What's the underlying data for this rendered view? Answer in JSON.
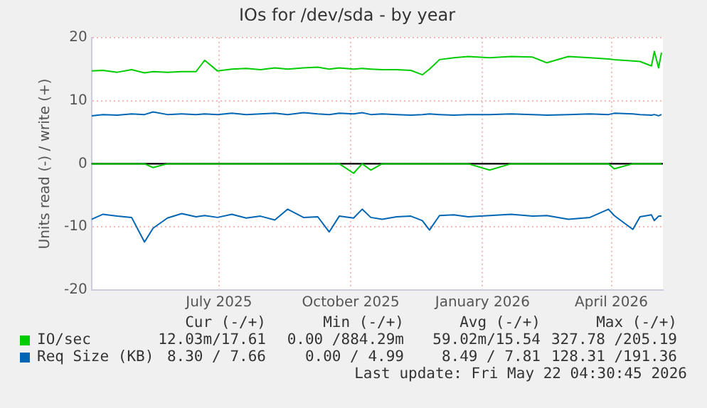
{
  "chart_data": {
    "type": "line",
    "title": "IOs for /dev/sda - by year",
    "ylabel": "Units read (-) / write (+)",
    "x": [
      "2025-04-18",
      "2025-04-26",
      "2025-05-06",
      "2025-05-16",
      "2025-05-25",
      "2025-05-31",
      "2025-06-10",
      "2025-06-20",
      "2025-06-30",
      "2025-07-06",
      "2025-07-15",
      "2025-07-25",
      "2025-08-04",
      "2025-08-14",
      "2025-08-24",
      "2025-09-02",
      "2025-09-13",
      "2025-09-23",
      "2025-10-01",
      "2025-10-08",
      "2025-10-18",
      "2025-10-24",
      "2025-10-30",
      "2025-11-07",
      "2025-11-17",
      "2025-11-27",
      "2025-12-05",
      "2025-12-10",
      "2025-12-17",
      "2025-12-27",
      "2026-01-06",
      "2026-01-21",
      "2026-02-05",
      "2026-02-20",
      "2026-03-02",
      "2026-03-17",
      "2026-04-01",
      "2026-04-14",
      "2026-04-18",
      "2026-05-01",
      "2026-05-06",
      "2026-05-14",
      "2026-05-16",
      "2026-05-19",
      "2026-05-21"
    ],
    "series": [
      {
        "name": "IO/sec",
        "color": "#00cc00",
        "values": [
          14.7,
          14.8,
          14.5,
          14.9,
          14.4,
          14.6,
          14.5,
          14.6,
          14.6,
          16.4,
          14.7,
          15.0,
          15.1,
          14.9,
          15.2,
          15.0,
          15.2,
          15.3,
          15.0,
          15.2,
          15.0,
          15.1,
          15.0,
          14.9,
          14.9,
          14.8,
          14.1,
          15.0,
          16.5,
          16.8,
          17.0,
          16.8,
          17.0,
          16.9,
          16.0,
          17.0,
          16.8,
          16.6,
          16.5,
          16.3,
          16.2,
          15.5,
          17.8,
          15.2,
          17.6
        ]
      },
      {
        "color": "#00cc00",
        "values": [
          0,
          0,
          0,
          0,
          0,
          -0.6,
          0,
          0,
          0,
          0,
          0,
          0,
          0,
          0,
          0,
          0,
          0,
          0,
          0,
          0,
          -1.5,
          0,
          -1.0,
          0,
          0,
          0,
          0,
          0,
          0,
          0,
          0,
          -1.0,
          0,
          0,
          0,
          0,
          0,
          0,
          -0.8,
          0,
          0,
          0,
          0,
          0,
          0
        ]
      },
      {
        "name": "Req Size (KB)",
        "color": "#0066b3",
        "values": [
          7.6,
          7.8,
          7.7,
          7.9,
          7.8,
          8.2,
          7.8,
          7.9,
          7.8,
          7.9,
          7.8,
          8.0,
          7.8,
          7.9,
          8.0,
          7.8,
          8.1,
          7.9,
          7.8,
          8.0,
          7.9,
          8.1,
          7.8,
          7.9,
          7.8,
          7.7,
          7.8,
          7.9,
          7.8,
          7.7,
          7.8,
          7.8,
          7.9,
          7.8,
          7.7,
          7.8,
          7.9,
          7.8,
          8.0,
          7.9,
          7.8,
          7.7,
          7.8,
          7.6,
          7.8
        ]
      },
      {
        "color": "#0066b3",
        "values": [
          -8.8,
          -8.0,
          -8.3,
          -8.5,
          -12.4,
          -10.2,
          -8.6,
          -7.9,
          -8.4,
          -8.2,
          -8.5,
          -8.0,
          -8.6,
          -8.3,
          -8.9,
          -7.2,
          -8.5,
          -8.4,
          -10.8,
          -8.3,
          -8.6,
          -7.2,
          -8.5,
          -8.8,
          -8.4,
          -8.3,
          -9.0,
          -10.5,
          -8.2,
          -8.1,
          -8.4,
          -8.2,
          -8.0,
          -8.3,
          -8.2,
          -8.8,
          -8.5,
          -7.2,
          -8.2,
          -10.4,
          -8.4,
          -8.1,
          -9.0,
          -8.3,
          -8.3
        ]
      }
    ],
    "xlim": [
      "2025-04-18",
      "2026-05-22"
    ],
    "xticks": [
      {
        "value": "2025-07-16",
        "label": "July 2025"
      },
      {
        "value": "2025-10-16",
        "label": "October 2025"
      },
      {
        "value": "2026-01-16",
        "label": "January 2026"
      },
      {
        "value": "2026-04-16",
        "label": "April 2026"
      }
    ],
    "ylim": [
      -20,
      20
    ],
    "yticks": [
      -20,
      -10,
      0,
      10,
      20
    ],
    "ref_lines": [
      {
        "axis": "y",
        "value": 0,
        "color": "#000000"
      }
    ],
    "grid": true,
    "legend": "bottom",
    "annotations": [
      "Cur (-/+)",
      "Min (-/+)",
      "Avg (-/+)",
      "Max (-/+)",
      "12.03m/17.61",
      "0.00 /884.29m",
      "59.02m/15.54",
      "327.78 /205.19",
      "8.30 / 7.66",
      "0.00 / 4.99",
      "8.49 / 7.81",
      "128.31 /191.36",
      "Last update: Fri May 22 04:30:45 2026"
    ]
  }
}
